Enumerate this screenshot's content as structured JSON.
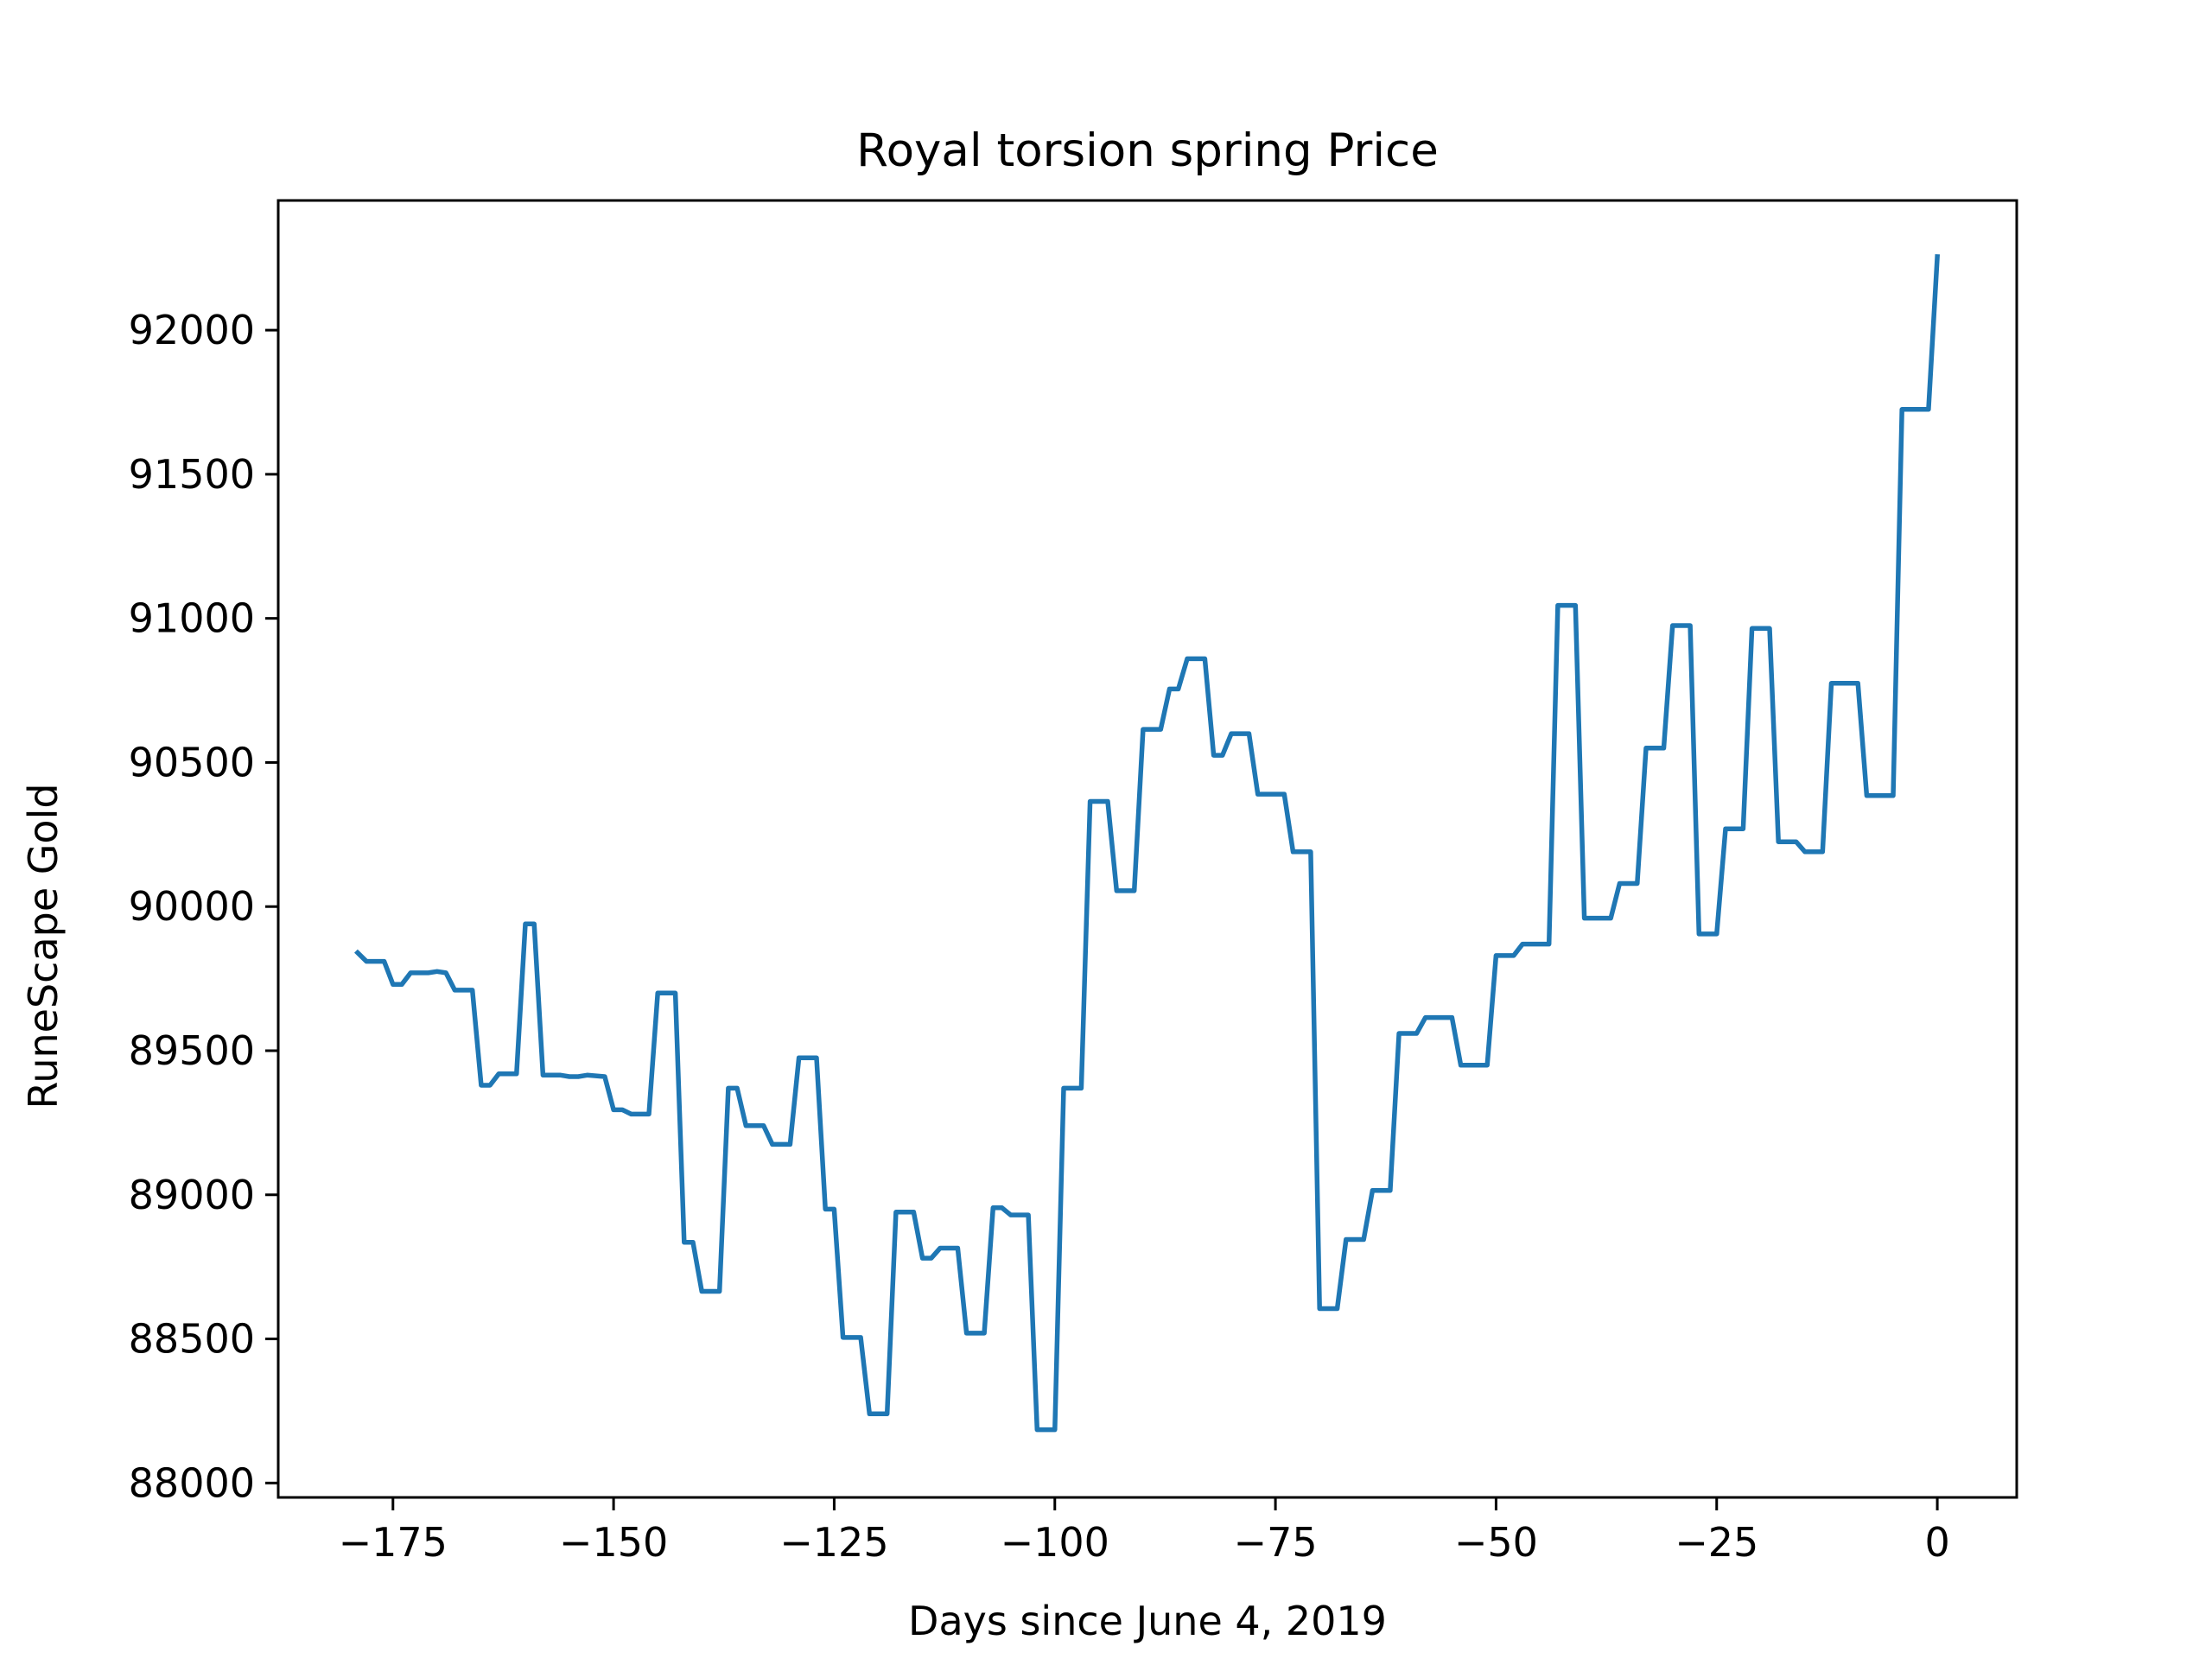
{
  "chart_data": {
    "type": "line",
    "title": "Royal torsion spring Price",
    "xlabel": "Days since June 4, 2019",
    "ylabel": "RuneScape Gold",
    "xlim": [
      -188,
      9
    ],
    "ylim": [
      87950,
      92450
    ],
    "x_ticks": [
      -175,
      -150,
      -125,
      -100,
      -75,
      -50,
      -25,
      0
    ],
    "x_tick_labels": [
      "−175",
      "−150",
      "−125",
      "−100",
      "−75",
      "−50",
      "−25",
      "0"
    ],
    "y_ticks": [
      88000,
      88500,
      89000,
      89500,
      90000,
      90500,
      91000,
      91500,
      92000
    ],
    "y_tick_labels": [
      "88000",
      "88500",
      "89000",
      "89500",
      "90000",
      "90500",
      "91000",
      "91500",
      "92000"
    ],
    "grid": false,
    "legend": "none",
    "series": [
      {
        "color": "#1f77b4",
        "points": [
          [
            -179,
            89840
          ],
          [
            -178,
            89810
          ],
          [
            -176,
            89810
          ],
          [
            -175,
            89730
          ],
          [
            -174,
            89730
          ],
          [
            -173,
            89770
          ],
          [
            -171,
            89770
          ],
          [
            -170,
            89775
          ],
          [
            -169,
            89770
          ],
          [
            -168,
            89710
          ],
          [
            -166,
            89710
          ],
          [
            -165,
            89380
          ],
          [
            -164,
            89380
          ],
          [
            -163,
            89420
          ],
          [
            -161,
            89420
          ],
          [
            -160,
            89940
          ],
          [
            -159,
            89940
          ],
          [
            -158,
            89415
          ],
          [
            -156,
            89415
          ],
          [
            -155,
            89410
          ],
          [
            -154,
            89410
          ],
          [
            -153,
            89415
          ],
          [
            -151,
            89410
          ],
          [
            -150,
            89295
          ],
          [
            -149,
            89295
          ],
          [
            -148,
            89280
          ],
          [
            -146,
            89280
          ],
          [
            -145,
            89700
          ],
          [
            -143,
            89700
          ],
          [
            -142,
            88835
          ],
          [
            -141,
            88835
          ],
          [
            -140,
            88665
          ],
          [
            -138,
            88665
          ],
          [
            -137,
            89370
          ],
          [
            -136,
            89370
          ],
          [
            -135,
            89240
          ],
          [
            -133,
            89240
          ],
          [
            -132,
            89175
          ],
          [
            -130,
            89175
          ],
          [
            -129,
            89475
          ],
          [
            -127,
            89475
          ],
          [
            -126,
            88950
          ],
          [
            -125,
            88950
          ],
          [
            -124,
            88505
          ],
          [
            -122,
            88505
          ],
          [
            -121,
            88240
          ],
          [
            -119,
            88240
          ],
          [
            -118,
            88940
          ],
          [
            -116,
            88940
          ],
          [
            -115,
            88780
          ],
          [
            -114,
            88780
          ],
          [
            -113,
            88815
          ],
          [
            -111,
            88815
          ],
          [
            -110,
            88520
          ],
          [
            -108,
            88520
          ],
          [
            -107,
            88955
          ],
          [
            -106,
            88955
          ],
          [
            -105,
            88930
          ],
          [
            -103,
            88930
          ],
          [
            -102,
            88185
          ],
          [
            -100,
            88185
          ],
          [
            -99,
            89370
          ],
          [
            -97,
            89370
          ],
          [
            -96,
            90365
          ],
          [
            -94,
            90365
          ],
          [
            -93,
            90055
          ],
          [
            -91,
            90055
          ],
          [
            -90,
            90615
          ],
          [
            -88,
            90615
          ],
          [
            -87,
            90755
          ],
          [
            -86,
            90755
          ],
          [
            -85,
            90860
          ],
          [
            -83,
            90860
          ],
          [
            -82,
            90525
          ],
          [
            -81,
            90525
          ],
          [
            -80,
            90600
          ],
          [
            -78,
            90600
          ],
          [
            -77,
            90390
          ],
          [
            -74,
            90390
          ],
          [
            -73,
            90190
          ],
          [
            -71,
            90190
          ],
          [
            -70,
            88605
          ],
          [
            -68,
            88605
          ],
          [
            -67,
            88845
          ],
          [
            -65,
            88845
          ],
          [
            -64,
            89015
          ],
          [
            -62,
            89015
          ],
          [
            -61,
            89560
          ],
          [
            -59,
            89560
          ],
          [
            -58,
            89615
          ],
          [
            -55,
            89615
          ],
          [
            -54,
            89450
          ],
          [
            -51,
            89450
          ],
          [
            -50,
            89830
          ],
          [
            -48,
            89830
          ],
          [
            -47,
            89870
          ],
          [
            -44,
            89870
          ],
          [
            -43,
            91045
          ],
          [
            -41,
            91045
          ],
          [
            -40,
            89960
          ],
          [
            -37,
            89960
          ],
          [
            -36,
            90080
          ],
          [
            -34,
            90080
          ],
          [
            -33,
            90550
          ],
          [
            -31,
            90550
          ],
          [
            -30,
            90975
          ],
          [
            -28,
            90975
          ],
          [
            -27,
            89905
          ],
          [
            -25,
            89905
          ],
          [
            -24,
            90270
          ],
          [
            -22,
            90270
          ],
          [
            -21,
            90965
          ],
          [
            -19,
            90965
          ],
          [
            -18,
            90225
          ],
          [
            -16,
            90225
          ],
          [
            -15,
            90190
          ],
          [
            -13,
            90190
          ],
          [
            -12,
            90775
          ],
          [
            -9,
            90775
          ],
          [
            -8,
            90385
          ],
          [
            -5,
            90385
          ],
          [
            -4,
            91725
          ],
          [
            -1,
            91725
          ],
          [
            0,
            92255
          ]
        ]
      }
    ]
  }
}
